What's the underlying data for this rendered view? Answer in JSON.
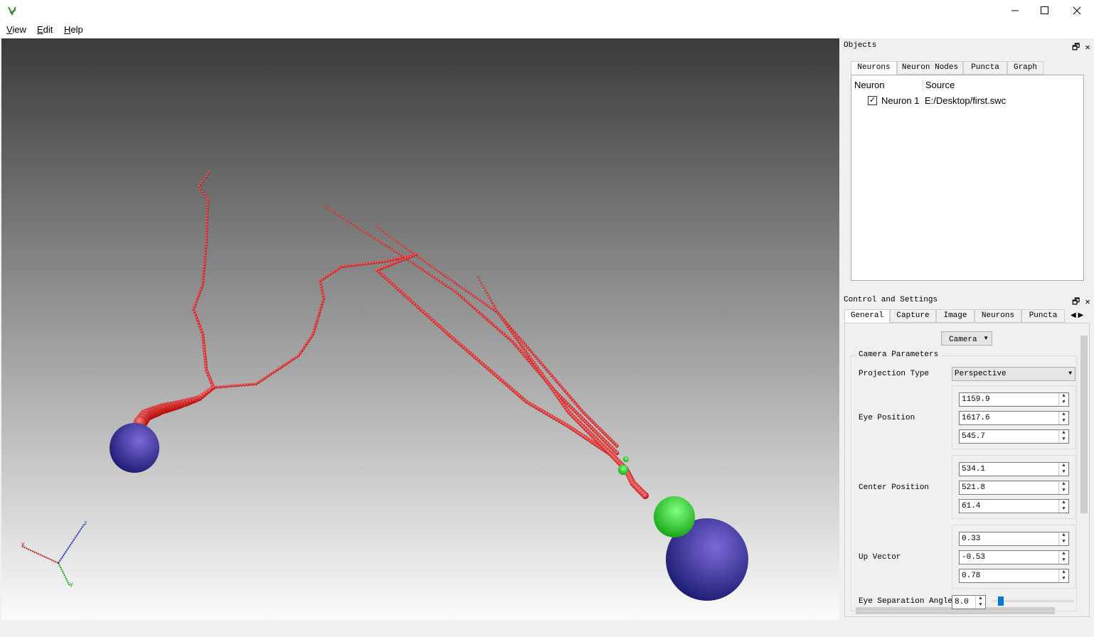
{
  "window": {
    "menu": [
      "View",
      "Edit",
      "Help"
    ]
  },
  "viewport": {
    "axis_labels": [
      "x",
      "y",
      "z"
    ]
  },
  "objects_panel": {
    "title": "Objects",
    "tabs": [
      "Neurons",
      "Neuron Nodes",
      "Puncta",
      "Graph"
    ],
    "table": {
      "columns": [
        "Neuron",
        "Source"
      ],
      "rows": [
        [
          "Neuron 1",
          "E:/Desktop/first.swc"
        ]
      ]
    }
  },
  "control_panel": {
    "title": "Control and Settings",
    "tabs": [
      "General",
      "Capture",
      "Image",
      "Neurons",
      "Puncta"
    ],
    "dropdown": "Camera",
    "group": "Camera Parameters",
    "projection": {
      "label": "Projection Type",
      "value": "Perspective"
    },
    "fields": [
      {
        "label": "Eye Position",
        "values": [
          "1159.9",
          "1617.6",
          "545.7"
        ]
      },
      {
        "label": "Center Position",
        "values": [
          "534.1",
          "521.8",
          "61.4"
        ]
      },
      {
        "label": "Up Vector",
        "values": [
          "0.33",
          "-0.53",
          "0.78"
        ]
      }
    ],
    "eye_separation": {
      "label": "Eye Separation Angle",
      "value": "8.0"
    }
  }
}
